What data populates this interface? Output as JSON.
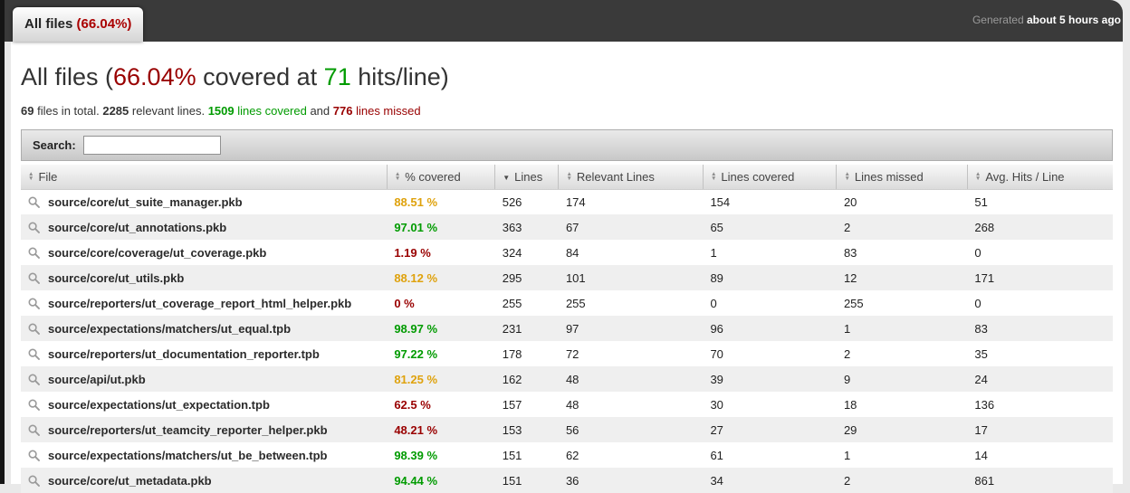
{
  "colors": {
    "green": "#009b00",
    "yellow": "#dfa20d",
    "red": "#990000"
  },
  "icons": {
    "row_icon": "magnifier-icon",
    "sort_unsorted": "sort-both-icon",
    "sort_sorted_desc": "sort-desc-icon"
  },
  "topbar": {
    "tab_label": "All files ",
    "tab_percent": "(66.04%)",
    "generated_prefix": "Generated ",
    "generated_time": "about 5 hours ago"
  },
  "title": {
    "prefix": "All files (",
    "percent": "66.04%",
    "middle": " covered at ",
    "hits_per_line": "71",
    "suffix": " hits/line)"
  },
  "stats": {
    "files_total": "69",
    "files_total_label": " files in total. ",
    "relevant_lines": "2285",
    "relevant_lines_label": " relevant lines. ",
    "lines_covered": "1509",
    "lines_covered_label": " lines covered",
    "conjunction": " and ",
    "lines_missed": "776",
    "lines_missed_label": " lines missed"
  },
  "search": {
    "label": "Search:",
    "value": ""
  },
  "table": {
    "columns": [
      {
        "key": "file",
        "label": "File",
        "sort": "both"
      },
      {
        "key": "percent-covered",
        "label": "% covered",
        "sort": "both"
      },
      {
        "key": "lines",
        "label": "Lines",
        "sort": "desc"
      },
      {
        "key": "relevant-lines",
        "label": "Relevant Lines",
        "sort": "both"
      },
      {
        "key": "lines-covered",
        "label": "Lines covered",
        "sort": "both"
      },
      {
        "key": "lines-missed",
        "label": "Lines missed",
        "sort": "both"
      },
      {
        "key": "avg-hits-line",
        "label": "Avg. Hits / Line",
        "sort": "both"
      }
    ],
    "rows": [
      {
        "file": "source/core/ut_suite_manager.pkb",
        "percent": "88.51 %",
        "level": "yellow",
        "lines": "526",
        "relevant": "174",
        "covered": "154",
        "missed": "20",
        "avg_hits": "51"
      },
      {
        "file": "source/core/ut_annotations.pkb",
        "percent": "97.01 %",
        "level": "green",
        "lines": "363",
        "relevant": "67",
        "covered": "65",
        "missed": "2",
        "avg_hits": "268"
      },
      {
        "file": "source/core/coverage/ut_coverage.pkb",
        "percent": "1.19 %",
        "level": "red",
        "lines": "324",
        "relevant": "84",
        "covered": "1",
        "missed": "83",
        "avg_hits": "0"
      },
      {
        "file": "source/core/ut_utils.pkb",
        "percent": "88.12 %",
        "level": "yellow",
        "lines": "295",
        "relevant": "101",
        "covered": "89",
        "missed": "12",
        "avg_hits": "171"
      },
      {
        "file": "source/reporters/ut_coverage_report_html_helper.pkb",
        "percent": "0 %",
        "level": "red",
        "lines": "255",
        "relevant": "255",
        "covered": "0",
        "missed": "255",
        "avg_hits": "0"
      },
      {
        "file": "source/expectations/matchers/ut_equal.tpb",
        "percent": "98.97 %",
        "level": "green",
        "lines": "231",
        "relevant": "97",
        "covered": "96",
        "missed": "1",
        "avg_hits": "83"
      },
      {
        "file": "source/reporters/ut_documentation_reporter.tpb",
        "percent": "97.22 %",
        "level": "green",
        "lines": "178",
        "relevant": "72",
        "covered": "70",
        "missed": "2",
        "avg_hits": "35"
      },
      {
        "file": "source/api/ut.pkb",
        "percent": "81.25 %",
        "level": "yellow",
        "lines": "162",
        "relevant": "48",
        "covered": "39",
        "missed": "9",
        "avg_hits": "24"
      },
      {
        "file": "source/expectations/ut_expectation.tpb",
        "percent": "62.5 %",
        "level": "red",
        "lines": "157",
        "relevant": "48",
        "covered": "30",
        "missed": "18",
        "avg_hits": "136"
      },
      {
        "file": "source/reporters/ut_teamcity_reporter_helper.pkb",
        "percent": "48.21 %",
        "level": "red",
        "lines": "153",
        "relevant": "56",
        "covered": "27",
        "missed": "29",
        "avg_hits": "17"
      },
      {
        "file": "source/expectations/matchers/ut_be_between.tpb",
        "percent": "98.39 %",
        "level": "green",
        "lines": "151",
        "relevant": "62",
        "covered": "61",
        "missed": "1",
        "avg_hits": "14"
      },
      {
        "file": "source/core/ut_metadata.pkb",
        "percent": "94.44 %",
        "level": "green",
        "lines": "151",
        "relevant": "36",
        "covered": "34",
        "missed": "2",
        "avg_hits": "861"
      }
    ]
  }
}
